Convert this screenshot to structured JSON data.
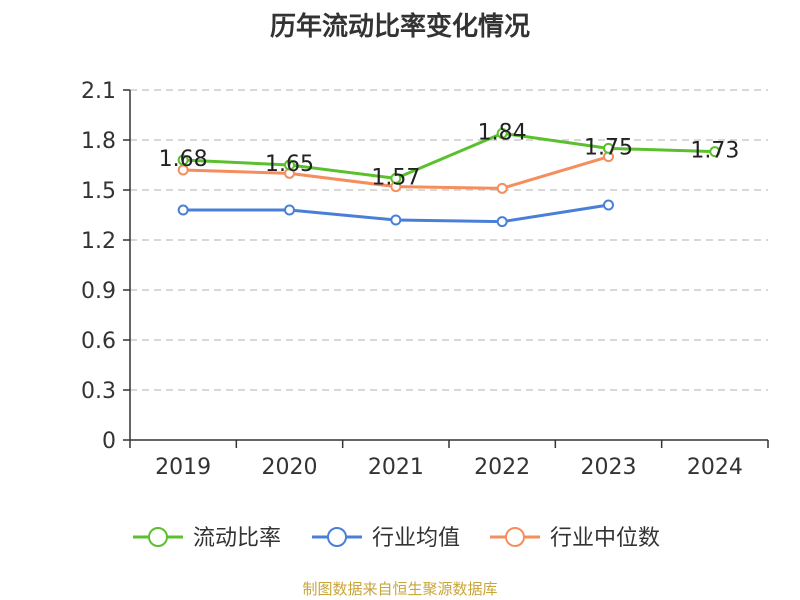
{
  "title": "历年流动比率变化情况",
  "source": "制图数据来自恒生聚源数据库",
  "chart_data": {
    "type": "line",
    "title": "历年流动比率变化情况",
    "categories": [
      "2019",
      "2020",
      "2021",
      "2022",
      "2023",
      "2024"
    ],
    "ylim": [
      0,
      2.1
    ],
    "yticks": [
      "0",
      "0.3",
      "0.6",
      "0.9",
      "1.2",
      "1.5",
      "1.8",
      "2.1"
    ],
    "grid": true,
    "legend_position": "bottom",
    "series": [
      {
        "name": "流动比率",
        "color": "#5ac02e",
        "values": [
          1.68,
          1.65,
          1.57,
          1.84,
          1.75,
          1.73
        ],
        "labels": [
          "1.68",
          "1.65",
          "1.57",
          "1.84",
          "1.75",
          "1.73"
        ]
      },
      {
        "name": "行业均值",
        "color": "#4a7fd8",
        "values": [
          1.38,
          1.38,
          1.32,
          1.31,
          1.41,
          null
        ]
      },
      {
        "name": "行业中位数",
        "color": "#f58e5c",
        "values": [
          1.62,
          1.6,
          1.52,
          1.51,
          1.7,
          null
        ]
      }
    ]
  }
}
